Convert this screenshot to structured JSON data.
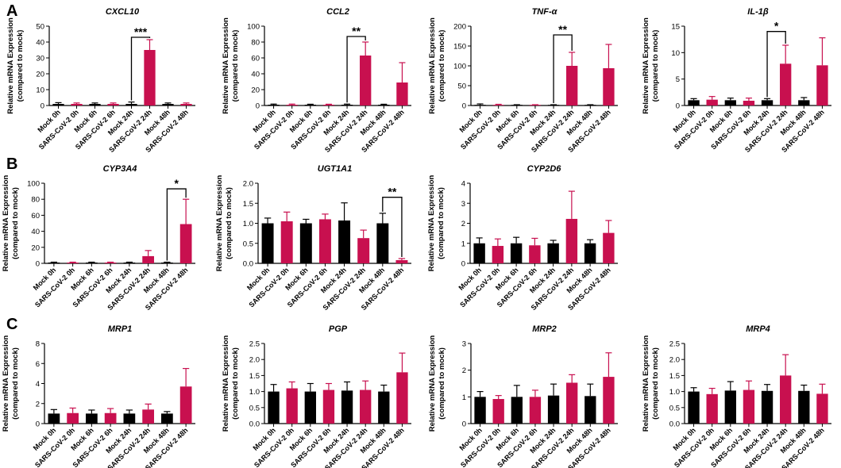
{
  "figure": {
    "categories": [
      "Mock 0h",
      "SARS-CoV-2 0h",
      "Mock 6h",
      "SARS-CoV-2 6h",
      "Mock 24h",
      "SARS-CoV-2 24h",
      "Mock 48h",
      "SARS-CoV-2 48h"
    ],
    "colors": {
      "mock": "#000000",
      "sars": "#c8104f"
    },
    "ylabel_line1": "Relative mRNA Expression",
    "ylabel_line2": "(compared to mock)",
    "panel_labels": [
      "A",
      "B",
      "C"
    ]
  },
  "chart_data": [
    {
      "type": "bar",
      "panel": "A",
      "title": "CXCL10",
      "title_italic": true,
      "ylim": [
        0,
        50
      ],
      "yticks": [
        0,
        10,
        20,
        30,
        40,
        50
      ],
      "tick_labels": [
        "0",
        "10",
        "20",
        "30",
        "40",
        "50"
      ],
      "values": [
        1,
        1,
        1,
        1,
        1,
        35,
        1,
        1
      ],
      "errors": [
        0.8,
        0.6,
        0.6,
        0.6,
        1.2,
        6.5,
        0.6,
        0.6
      ],
      "significance": [
        {
          "from": 4,
          "to": 5,
          "level": 43,
          "label": "***"
        }
      ]
    },
    {
      "type": "bar",
      "panel": "A",
      "title": "CCL2",
      "title_italic": true,
      "ylim": [
        0,
        100
      ],
      "yticks": [
        0,
        20,
        40,
        60,
        80,
        100
      ],
      "tick_labels": [
        "0",
        "20",
        "40",
        "60",
        "80",
        "100"
      ],
      "values": [
        1,
        1,
        1,
        1,
        1,
        63,
        1,
        29
      ],
      "errors": [
        0.8,
        0.8,
        0.6,
        0.6,
        0.8,
        17,
        0.6,
        25
      ],
      "significance": [
        {
          "from": 4,
          "to": 5,
          "level": 87,
          "label": "**"
        }
      ]
    },
    {
      "type": "bar",
      "panel": "A",
      "title": "TNF-α",
      "title_italic": true,
      "ylim": [
        0,
        200
      ],
      "yticks": [
        0,
        50,
        100,
        150,
        200
      ],
      "tick_labels": [
        "0",
        "50",
        "100",
        "150",
        "200"
      ],
      "values": [
        1,
        1,
        1,
        1,
        1,
        100,
        1,
        94
      ],
      "errors": [
        3,
        2,
        1,
        1,
        1,
        34,
        1,
        60
      ],
      "significance": [
        {
          "from": 4,
          "to": 5,
          "level": 178,
          "label": "**"
        }
      ]
    },
    {
      "type": "bar",
      "panel": "A",
      "title": "IL-1β",
      "title_italic": true,
      "ylim": [
        0,
        15
      ],
      "yticks": [
        0,
        5,
        10,
        15
      ],
      "tick_labels": [
        "0",
        "5",
        "10",
        "15"
      ],
      "values": [
        1,
        1.1,
        1,
        0.9,
        1,
        7.9,
        1,
        7.6
      ],
      "errors": [
        0.3,
        0.6,
        0.4,
        0.5,
        0.3,
        3.5,
        0.5,
        5.2
      ],
      "significance": [
        {
          "from": 4,
          "to": 5,
          "level": 14,
          "label": "*"
        }
      ]
    },
    {
      "type": "bar",
      "panel": "B",
      "title": "CYP3A4",
      "title_italic": true,
      "ylim": [
        0,
        100
      ],
      "yticks": [
        0,
        20,
        40,
        60,
        80,
        100
      ],
      "tick_labels": [
        "0",
        "20",
        "40",
        "60",
        "80",
        "100"
      ],
      "values": [
        1,
        1,
        1,
        1,
        1,
        9,
        1,
        49
      ],
      "errors": [
        0.5,
        0.5,
        0.5,
        0.5,
        0.5,
        7,
        0.5,
        31
      ],
      "significance": [
        {
          "from": 6,
          "to": 7,
          "level": 93,
          "label": "*"
        }
      ]
    },
    {
      "type": "bar",
      "panel": "B",
      "title": "UGT1A1",
      "title_italic": true,
      "ylim": [
        0,
        2.0
      ],
      "yticks": [
        0,
        0.5,
        1.0,
        1.5,
        2.0
      ],
      "tick_labels": [
        "0.0",
        "0.5",
        "1.0",
        "1.5",
        "2.0"
      ],
      "values": [
        1.0,
        1.05,
        1.0,
        1.1,
        1.07,
        0.63,
        1.0,
        0.08
      ],
      "errors": [
        0.13,
        0.23,
        0.1,
        0.13,
        0.44,
        0.2,
        0.25,
        0.04
      ],
      "significance": [
        {
          "from": 6,
          "to": 7,
          "level": 1.65,
          "label": "**"
        }
      ]
    },
    {
      "type": "bar",
      "panel": "B",
      "title": "CYP2D6",
      "title_italic": true,
      "ylim": [
        0,
        4
      ],
      "yticks": [
        0,
        1,
        2,
        3,
        4
      ],
      "tick_labels": [
        "0",
        "1",
        "2",
        "3",
        "4"
      ],
      "values": [
        1.0,
        0.87,
        1.0,
        0.9,
        1.0,
        2.22,
        1.0,
        1.52
      ],
      "errors": [
        0.27,
        0.35,
        0.3,
        0.35,
        0.15,
        1.38,
        0.18,
        0.62
      ],
      "significance": []
    },
    {
      "type": "bar",
      "panel": "C",
      "title": "MRP1",
      "title_italic": true,
      "ylim": [
        0,
        8
      ],
      "yticks": [
        0,
        2,
        4,
        6,
        8
      ],
      "tick_labels": [
        "0",
        "2",
        "4",
        "6",
        "8"
      ],
      "values": [
        1.0,
        1.05,
        1.0,
        1.05,
        1.0,
        1.4,
        1.0,
        3.7
      ],
      "errors": [
        0.4,
        0.5,
        0.35,
        0.45,
        0.35,
        0.55,
        0.2,
        1.8
      ],
      "significance": []
    },
    {
      "type": "bar",
      "panel": "C",
      "title": "PGP",
      "title_italic": true,
      "ylim": [
        0,
        2.5
      ],
      "yticks": [
        0,
        0.5,
        1.0,
        1.5,
        2.0,
        2.5
      ],
      "tick_labels": [
        "0.0",
        "0.5",
        "1.0",
        "1.5",
        "2.0",
        "2.5"
      ],
      "values": [
        1.0,
        1.1,
        1.0,
        1.05,
        1.03,
        1.05,
        1.0,
        1.6
      ],
      "errors": [
        0.22,
        0.2,
        0.25,
        0.2,
        0.27,
        0.28,
        0.2,
        0.6
      ],
      "significance": []
    },
    {
      "type": "bar",
      "panel": "C",
      "title": "MRP2",
      "title_italic": true,
      "ylim": [
        0,
        3
      ],
      "yticks": [
        0,
        1,
        2,
        3
      ],
      "tick_labels": [
        "0",
        "1",
        "2",
        "3"
      ],
      "values": [
        1.0,
        0.92,
        1.0,
        1.0,
        1.05,
        1.53,
        1.03,
        1.75
      ],
      "errors": [
        0.2,
        0.13,
        0.43,
        0.25,
        0.43,
        0.3,
        0.45,
        0.9
      ],
      "significance": []
    },
    {
      "type": "bar",
      "panel": "C",
      "title": "MRP4",
      "title_italic": true,
      "ylim": [
        0,
        2.5
      ],
      "yticks": [
        0,
        0.5,
        1.0,
        1.5,
        2.0,
        2.5
      ],
      "tick_labels": [
        "0.0",
        "0.5",
        "1.0",
        "1.5",
        "2.0",
        "2.5"
      ],
      "values": [
        1.0,
        0.92,
        1.03,
        1.05,
        1.02,
        1.5,
        1.02,
        0.93
      ],
      "errors": [
        0.12,
        0.18,
        0.28,
        0.28,
        0.2,
        0.65,
        0.18,
        0.3
      ],
      "significance": []
    }
  ]
}
